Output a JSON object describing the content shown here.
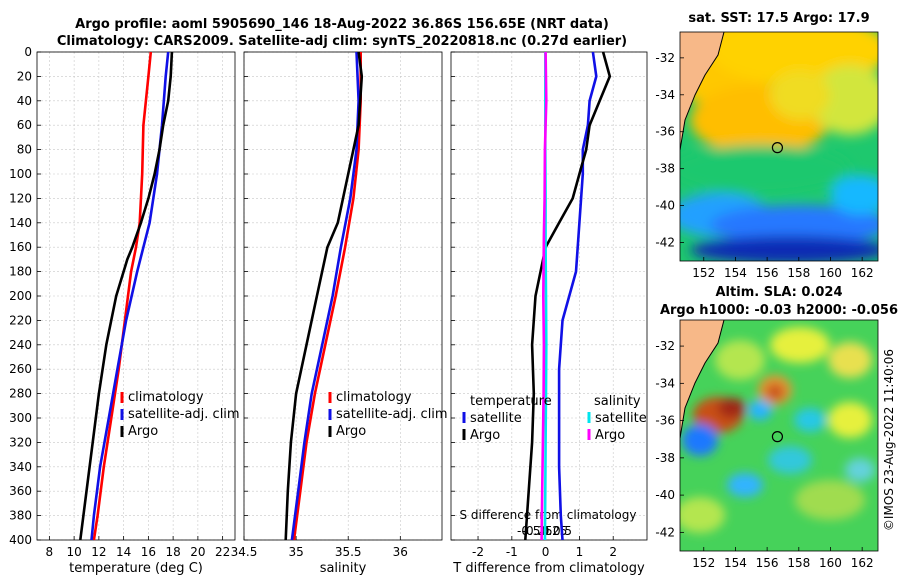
{
  "figure": {
    "title_line1": "Argo profile: aoml 5905690_146 18-Aug-2022 36.86S 156.65E (NRT data)",
    "title_line2": "Climatology: CARS2009. Satellite-adj clim: synTS_20220818.nc (0.27d earlier)",
    "watermark": "©IMOS 23-Aug-2022 11:40:06"
  },
  "colors": {
    "climatology": "#ff0000",
    "satellite": "#1010e6",
    "argo": "#000000",
    "sal_satellite": "#00e5ee",
    "sal_argo": "#ff00ff",
    "grid": "#c8c8c8"
  },
  "chart_data": [
    {
      "id": "temperature",
      "type": "line",
      "xlabel": "temperature (deg C)",
      "ylabel": "",
      "xlim": [
        7,
        23
      ],
      "ylim": [
        400,
        0
      ],
      "xticks": [
        8,
        10,
        12,
        14,
        16,
        18,
        20,
        22
      ],
      "yticks": [
        0,
        20,
        40,
        60,
        80,
        100,
        120,
        140,
        160,
        180,
        200,
        220,
        240,
        260,
        280,
        300,
        320,
        340,
        360,
        380,
        400
      ],
      "legend": {
        "position": "right-middle",
        "entries": [
          "climatology",
          "satellite-adj. clim",
          "Argo"
        ]
      },
      "series": [
        {
          "name": "climatology",
          "depth": [
            0,
            20,
            60,
            100,
            140,
            160,
            180,
            220,
            260,
            300,
            340,
            380,
            400
          ],
          "values": [
            16.2,
            16.0,
            15.6,
            15.5,
            15.3,
            15.0,
            14.6,
            14.1,
            13.6,
            13.0,
            12.4,
            11.9,
            11.6
          ]
        },
        {
          "name": "satellite-adj. clim",
          "depth": [
            0,
            20,
            60,
            100,
            140,
            160,
            180,
            220,
            260,
            300,
            340,
            380,
            400
          ],
          "values": [
            17.6,
            17.4,
            17.1,
            16.7,
            16.1,
            15.6,
            15.1,
            14.2,
            13.5,
            12.8,
            12.1,
            11.6,
            11.4
          ]
        },
        {
          "name": "Argo",
          "depth": [
            0,
            20,
            40,
            60,
            80,
            100,
            120,
            140,
            160,
            170,
            200,
            240,
            280,
            320,
            360,
            400
          ],
          "values": [
            17.9,
            17.8,
            17.6,
            17.2,
            16.9,
            16.5,
            16.0,
            15.4,
            14.7,
            14.3,
            13.4,
            12.6,
            12.0,
            11.5,
            11.0,
            10.5
          ]
        }
      ]
    },
    {
      "id": "salinity",
      "type": "line",
      "xlabel": "salinity",
      "ylabel": "",
      "xlim": [
        34.5,
        36.4
      ],
      "ylim": [
        400,
        0
      ],
      "xticks": [
        34.5,
        35,
        35.5,
        36
      ],
      "legend": {
        "position": "right-middle",
        "entries": [
          "climatology",
          "satellite-adj. clim",
          "Argo"
        ]
      },
      "series": [
        {
          "name": "climatology",
          "depth": [
            0,
            40,
            80,
            120,
            160,
            200,
            240,
            280,
            320,
            360,
            400
          ],
          "values": [
            35.62,
            35.62,
            35.6,
            35.55,
            35.47,
            35.38,
            35.28,
            35.18,
            35.1,
            35.04,
            34.98
          ]
        },
        {
          "name": "satellite-adj. clim",
          "depth": [
            0,
            40,
            80,
            120,
            160,
            200,
            240,
            280,
            320,
            360,
            400
          ],
          "values": [
            35.58,
            35.6,
            35.58,
            35.52,
            35.43,
            35.35,
            35.25,
            35.15,
            35.08,
            35.02,
            34.96
          ]
        },
        {
          "name": "Argo",
          "depth": [
            0,
            20,
            60,
            100,
            140,
            160,
            200,
            240,
            280,
            320,
            360,
            400
          ],
          "values": [
            35.6,
            35.63,
            35.6,
            35.5,
            35.4,
            35.3,
            35.2,
            35.1,
            35.0,
            34.95,
            34.92,
            34.9
          ]
        }
      ]
    },
    {
      "id": "difference",
      "type": "line",
      "xlabel": "T difference from climatology",
      "xlabel_top": "S difference from climatology",
      "xlim": [
        -2.8,
        3.0
      ],
      "ylim": [
        400,
        0
      ],
      "xticks": [
        -2,
        -1,
        0,
        1,
        2
      ],
      "xticks_s": [
        -0.5,
        -0.25,
        0,
        0.25,
        0.5
      ],
      "xticks_s_labels": [
        "-0.5",
        "-0.25",
        "0",
        "0.25",
        "0.5"
      ],
      "legend_temperature": {
        "title": "temperature",
        "entries": [
          "satellite",
          "Argo"
        ]
      },
      "legend_salinity": {
        "title": "salinity",
        "entries": [
          "satellite",
          "Argo"
        ]
      },
      "series": [
        {
          "name": "T satellite",
          "depth": [
            0,
            20,
            40,
            60,
            80,
            100,
            140,
            180,
            220,
            260,
            300,
            340,
            380,
            400
          ],
          "values": [
            1.4,
            1.5,
            1.3,
            1.25,
            1.1,
            1.1,
            1.0,
            0.9,
            0.5,
            0.4,
            0.4,
            0.4,
            0.45,
            0.5
          ]
        },
        {
          "name": "T Argo",
          "depth": [
            0,
            20,
            40,
            60,
            80,
            100,
            120,
            140,
            160,
            200,
            240,
            280,
            320,
            360,
            400
          ],
          "values": [
            1.7,
            1.9,
            1.6,
            1.3,
            1.2,
            1.0,
            0.8,
            0.4,
            0.0,
            -0.3,
            -0.4,
            -0.35,
            -0.4,
            -0.5,
            -0.6
          ]
        },
        {
          "name": "S satellite",
          "depth": [
            0,
            40,
            80,
            120,
            160,
            200,
            240,
            280,
            320,
            360,
            400
          ],
          "values": [
            -0.01,
            -0.01,
            -0.01,
            0.0,
            0.0,
            0.01,
            0.02,
            0.01,
            0.0,
            -0.01,
            -0.02
          ]
        },
        {
          "name": "S Argo",
          "depth": [
            0,
            40,
            80,
            120,
            150,
            200,
            240,
            280,
            320,
            360,
            400
          ],
          "values": [
            0.0,
            0.02,
            -0.02,
            -0.03,
            -0.05,
            -0.07,
            -0.05,
            -0.06,
            -0.08,
            -0.1,
            -0.12
          ]
        }
      ]
    },
    {
      "id": "sst_map",
      "type": "heatmap",
      "title": "sat. SST: 17.5 Argo: 17.9",
      "xticks": [
        152,
        154,
        156,
        158,
        160,
        162
      ],
      "yticks": [
        -32,
        -34,
        -36,
        -38,
        -40,
        -42
      ],
      "xlim": [
        150.5,
        163
      ],
      "ylim": [
        -43,
        -30.6
      ],
      "marker": {
        "lon": 156.65,
        "lat": -36.86
      }
    },
    {
      "id": "sla_map",
      "type": "heatmap",
      "title_line1": "Altim. SLA: 0.024",
      "title_line2": "Argo h1000: -0.03 h2000: -0.056",
      "xticks": [
        152,
        154,
        156,
        158,
        160,
        162
      ],
      "yticks": [
        -32,
        -34,
        -36,
        -38,
        -40,
        -42
      ],
      "xlim": [
        150.5,
        163
      ],
      "ylim": [
        -43,
        -30.6
      ],
      "marker": {
        "lon": 156.65,
        "lat": -36.86
      }
    }
  ]
}
